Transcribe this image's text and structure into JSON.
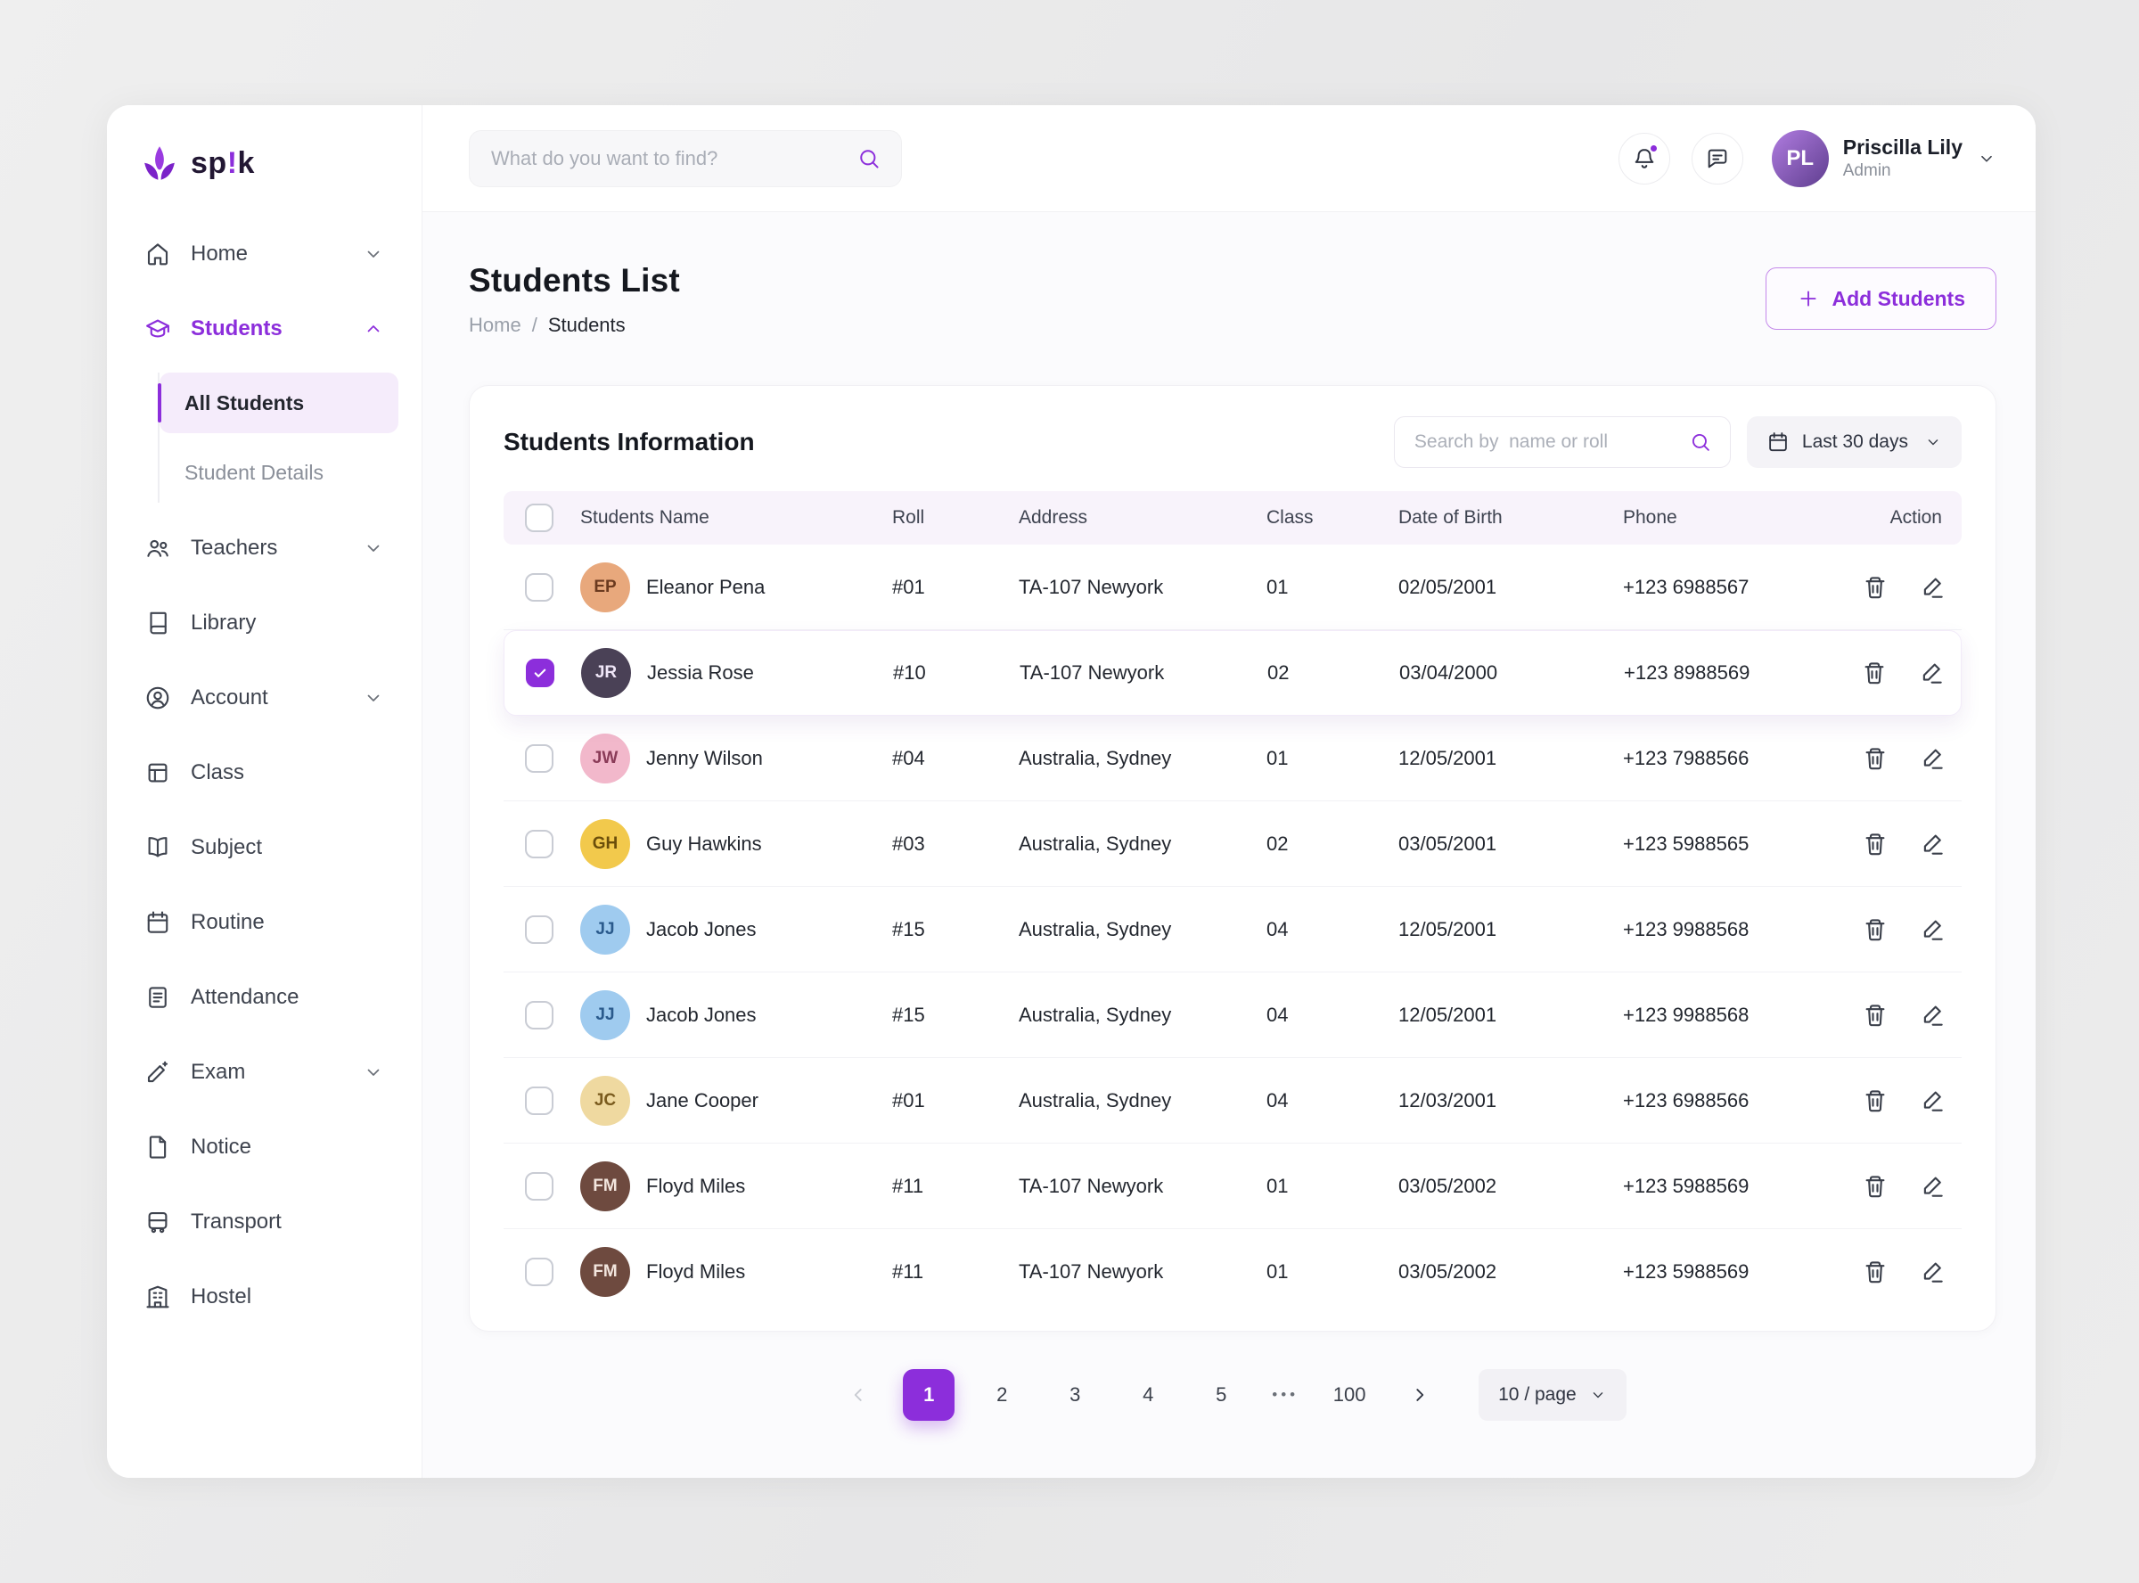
{
  "brand": {
    "prefix": "sp",
    "mark": "!",
    "suffix": "k"
  },
  "colors": {
    "accent": "#8C2EDB",
    "header_row_bg": "#F8F3FB",
    "subitem_active_bg": "#F5ECFB"
  },
  "topbar": {
    "search_placeholder": "What do you want to find?",
    "user": {
      "name": "Priscilla Lily",
      "role": "Admin",
      "initials": "PL"
    }
  },
  "sidebar": {
    "items": [
      {
        "label": "Home",
        "icon": "home",
        "chevron": true
      },
      {
        "label": "Students",
        "icon": "students",
        "chevron": true,
        "active": true,
        "children": [
          {
            "label": "All Students",
            "active": true
          },
          {
            "label": "Student Details"
          }
        ]
      },
      {
        "label": "Teachers",
        "icon": "teachers",
        "chevron": true
      },
      {
        "label": "Library",
        "icon": "library"
      },
      {
        "label": "Account",
        "icon": "account",
        "chevron": true
      },
      {
        "label": "Class",
        "icon": "class"
      },
      {
        "label": "Subject",
        "icon": "subject"
      },
      {
        "label": "Routine",
        "icon": "routine"
      },
      {
        "label": "Attendance",
        "icon": "attendance"
      },
      {
        "label": "Exam",
        "icon": "exam",
        "chevron": true
      },
      {
        "label": "Notice",
        "icon": "notice"
      },
      {
        "label": "Transport",
        "icon": "transport"
      },
      {
        "label": "Hostel",
        "icon": "hostel"
      }
    ]
  },
  "page": {
    "title": "Students List",
    "breadcrumb": {
      "home": "Home",
      "sep": "/",
      "current": "Students"
    },
    "add_button": "Add Students"
  },
  "panel": {
    "title": "Students Information",
    "search_placeholder": "Search by  name or roll",
    "date_filter": "Last 30 days"
  },
  "table": {
    "headers": [
      "Students Name",
      "Roll",
      "Address",
      "Class",
      "Date of Birth",
      "Phone",
      "Action"
    ],
    "rows": [
      {
        "name": "Eleanor Pena",
        "roll": "#01",
        "address": "TA-107 Newyork",
        "class": "01",
        "dob": "02/05/2001",
        "phone": "+123 6988567",
        "checked": false,
        "avatar": {
          "initials": "EP",
          "bg": "#E8A87C",
          "fg": "#6B3A1F"
        }
      },
      {
        "name": "Jessia Rose",
        "roll": "#10",
        "address": "TA-107 Newyork",
        "class": "02",
        "dob": "03/04/2000",
        "phone": "+123 8988569",
        "checked": true,
        "avatar": {
          "initials": "JR",
          "bg": "#4A4156",
          "fg": "#EFE6F7"
        }
      },
      {
        "name": "Jenny Wilson",
        "roll": "#04",
        "address": "Australia, Sydney",
        "class": "01",
        "dob": "12/05/2001",
        "phone": "+123 7988566",
        "checked": false,
        "avatar": {
          "initials": "JW",
          "bg": "#F2B8CB",
          "fg": "#8A3B58"
        }
      },
      {
        "name": "Guy Hawkins",
        "roll": "#03",
        "address": "Australia, Sydney",
        "class": "02",
        "dob": "03/05/2001",
        "phone": "+123 5988565",
        "checked": false,
        "avatar": {
          "initials": "GH",
          "bg": "#F2C94C",
          "fg": "#6B4E0B"
        }
      },
      {
        "name": "Jacob Jones",
        "roll": "#15",
        "address": "Australia, Sydney",
        "class": "04",
        "dob": "12/05/2001",
        "phone": "+123 9988568",
        "checked": false,
        "avatar": {
          "initials": "JJ",
          "bg": "#9FCBEF",
          "fg": "#2A5A8C"
        }
      },
      {
        "name": "Jacob Jones",
        "roll": "#15",
        "address": "Australia, Sydney",
        "class": "04",
        "dob": "12/05/2001",
        "phone": "+123 9988568",
        "checked": false,
        "avatar": {
          "initials": "JJ",
          "bg": "#9FCBEF",
          "fg": "#2A5A8C"
        }
      },
      {
        "name": "Jane Cooper",
        "roll": "#01",
        "address": "Australia, Sydney",
        "class": "04",
        "dob": "12/03/2001",
        "phone": "+123 6988566",
        "checked": false,
        "avatar": {
          "initials": "JC",
          "bg": "#EFD9A0",
          "fg": "#7A5B1E"
        }
      },
      {
        "name": "Floyd Miles",
        "roll": "#11",
        "address": "TA-107 Newyork",
        "class": "01",
        "dob": "03/05/2002",
        "phone": "+123 5988569",
        "checked": false,
        "avatar": {
          "initials": "FM",
          "bg": "#6E4A3F",
          "fg": "#F3E6DE"
        }
      },
      {
        "name": "Floyd Miles",
        "roll": "#11",
        "address": "TA-107 Newyork",
        "class": "01",
        "dob": "03/05/2002",
        "phone": "+123 5988569",
        "checked": false,
        "avatar": {
          "initials": "FM",
          "bg": "#6E4A3F",
          "fg": "#F3E6DE"
        }
      }
    ]
  },
  "pagination": {
    "pages": [
      "1",
      "2",
      "3",
      "4",
      "5"
    ],
    "active": "1",
    "ellipsis": "•••",
    "last": "100",
    "per_page": "10 / page"
  }
}
